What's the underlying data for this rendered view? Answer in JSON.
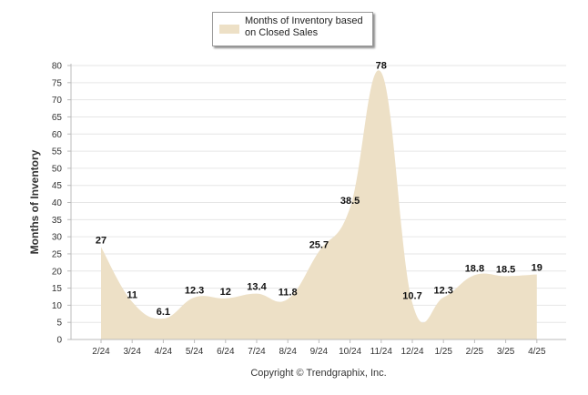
{
  "chart_data": {
    "type": "area",
    "title": "",
    "xlabel": "",
    "ylabel": "Months of Inventory",
    "categories": [
      "2/24",
      "3/24",
      "4/24",
      "5/24",
      "6/24",
      "7/24",
      "8/24",
      "9/24",
      "10/24",
      "11/24",
      "12/24",
      "1/25",
      "2/25",
      "3/25",
      "4/25"
    ],
    "series": [
      {
        "name": "Months of Inventory based on Closed Sales",
        "values": [
          27,
          11,
          6.1,
          12.3,
          12,
          13.4,
          11.8,
          25.7,
          38.5,
          78,
          10.7,
          12.3,
          18.8,
          18.5,
          19
        ],
        "value_labels": [
          "27",
          "11",
          "6.1",
          "12.3",
          "12",
          "13.4",
          "11.8",
          "25.7",
          "38.5",
          "78",
          "10.7",
          "12.3",
          "18.8",
          "18.5",
          "19"
        ]
      }
    ],
    "ylim": [
      0,
      80
    ],
    "yticks": [
      0,
      5,
      10,
      15,
      20,
      25,
      30,
      35,
      40,
      45,
      50,
      55,
      60,
      65,
      70,
      75,
      80
    ],
    "ytick_labels": [
      "0",
      "5",
      "10",
      "15",
      "20",
      "25",
      "30",
      "35",
      "40",
      "45",
      "50",
      "55",
      "60",
      "65",
      "70",
      "75",
      "80"
    ],
    "grid": true,
    "legend_position": "top-center",
    "colors": {
      "fill": "#ede0c6",
      "grid": "#e6e6e6",
      "axis": "#bbbbbb"
    }
  },
  "legend": {
    "label": "Months of Inventory based on Closed Sales"
  },
  "footer": {
    "copyright": "Copyright © Trendgraphix, Inc."
  }
}
